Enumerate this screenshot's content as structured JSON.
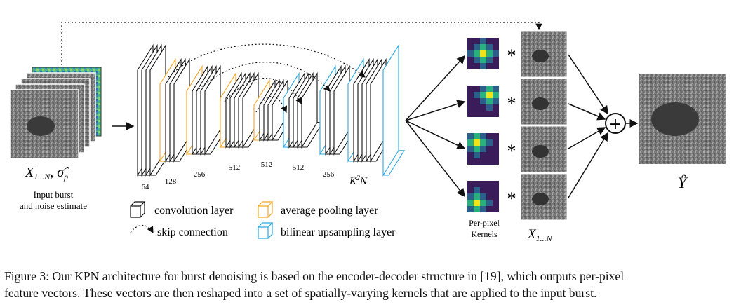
{
  "diagram": {
    "input_label_math": "X",
    "input_label_sub": "1...N",
    "input_label_sigma": "σ̂",
    "input_label_sigma_sub": "p",
    "input_caption_line1": "Input burst",
    "input_caption_line2": "and noise estimate",
    "channel_labels": [
      "64",
      "128",
      "256",
      "512",
      "512",
      "512",
      "256"
    ],
    "output_channel_label": "K",
    "output_channel_sup": "2",
    "output_channel_suffix": "N",
    "kernel_caption_line1": "Per-pixel",
    "kernel_caption_line2": "Kernels",
    "frames_label": "X",
    "frames_label_sub": "1...N",
    "output_label": "Ŷ",
    "multiply_symbol": "*",
    "sum_symbol": "+",
    "legend": {
      "conv": "convolution layer",
      "pool": "average pooling layer",
      "skip": "skip connection",
      "upsample": "bilinear upsampling layer"
    },
    "colors": {
      "conv": "#111111",
      "pool": "#f5a623",
      "upsample": "#29a8e0",
      "kernel_bg": "#3b1c5a",
      "kernel_hot": "#f0e31a",
      "kernel_mid": "#2ab07f"
    }
  },
  "caption": {
    "line1": "Figure 3: Our KPN architecture for burst denoising is based on the encoder-decoder structure in [19], which outputs per-pixel",
    "line2": "feature vectors. These vectors are then reshaped into a set of spatially-varying kernels that are applied to the input burst."
  }
}
